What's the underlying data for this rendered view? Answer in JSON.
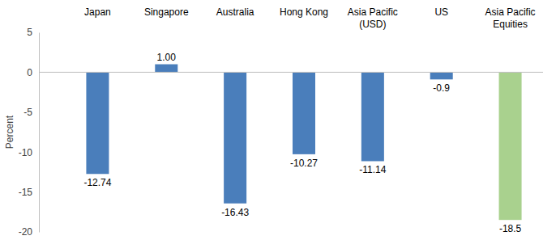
{
  "chart_data": {
    "type": "bar",
    "y_label": "Percent",
    "categories": [
      "Japan",
      "Singapore",
      "Australia",
      "Hong Kong",
      "Asia Pacific\n(USD)",
      "US",
      "Asia Pacific\nEquities"
    ],
    "values": [
      -12.74,
      1.0,
      -16.43,
      -10.27,
      -11.14,
      -0.9,
      -18.5
    ],
    "value_labels": [
      "-12.74",
      "1.00",
      "-16.43",
      "-10.27",
      "-11.14",
      "-0.9",
      "-18.5"
    ],
    "colors": [
      "#4a7ebb",
      "#4a7ebb",
      "#4a7ebb",
      "#4a7ebb",
      "#4a7ebb",
      "#4a7ebb",
      "#a9d18e"
    ],
    "ylim": [
      -20,
      5
    ],
    "yticks": [
      -20,
      -15,
      -10,
      -5,
      0,
      5
    ],
    "grid": false,
    "data_labels": true
  }
}
